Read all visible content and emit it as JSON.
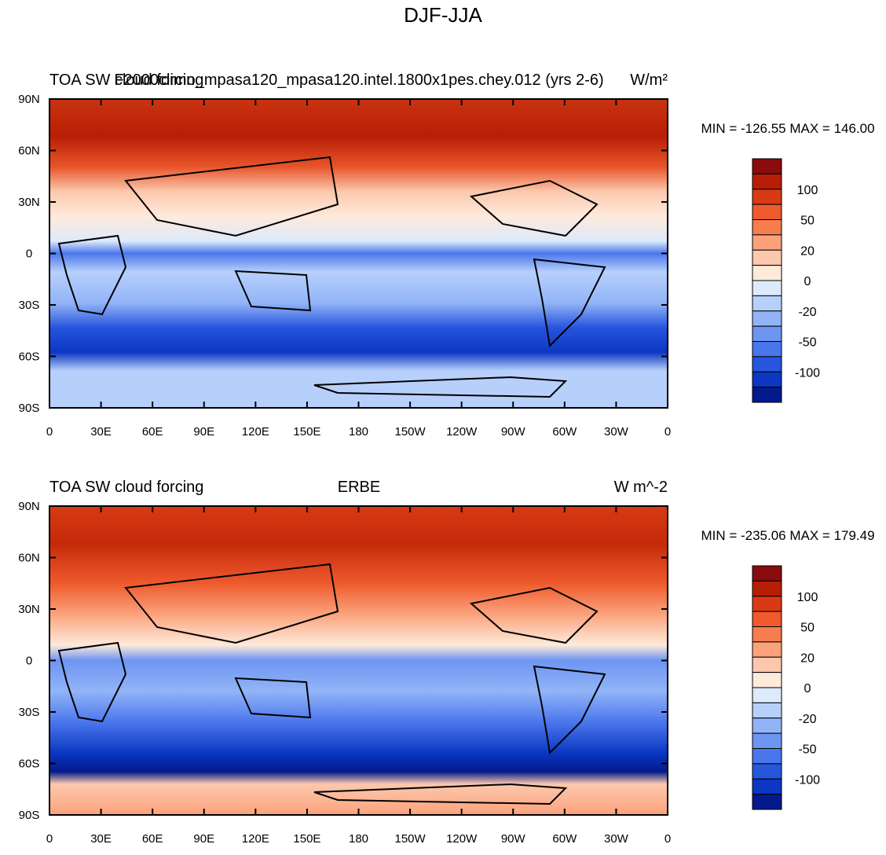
{
  "title": "DJF-JJA",
  "panels": [
    {
      "left_title": "TOA SW cloud forcing",
      "center_title": "F2000climo_mpasa120_mpasa120.intel.1800x1pes.chey.012 (yrs 2-6)",
      "units": "W/m²",
      "min_max": "MIN = -126.55 MAX = 146.00"
    },
    {
      "left_title": "TOA SW cloud forcing",
      "center_title": "ERBE",
      "units": "W m^-2",
      "min_max": "MIN = -235.06 MAX = 179.49"
    }
  ],
  "lat_ticks": [
    "90N",
    "60N",
    "30N",
    "0",
    "30S",
    "60S",
    "90S"
  ],
  "lon_ticks": [
    "0",
    "30E",
    "60E",
    "90E",
    "120E",
    "150E",
    "180",
    "150W",
    "120W",
    "90W",
    "60W",
    "30W",
    "0"
  ],
  "colorbar": {
    "labels": [
      "100",
      "50",
      "20",
      "0",
      "-20",
      "-50",
      "-100"
    ],
    "colors": [
      "#8a0c0c",
      "#b81e05",
      "#d93a13",
      "#ee5a2c",
      "#f67d4e",
      "#fba27c",
      "#fcc8ad",
      "#feeadb",
      "#dceafc",
      "#b7d0fb",
      "#92b4f7",
      "#6d95f2",
      "#4a76ec",
      "#2655de",
      "#0b37c2",
      "#031a8c"
    ]
  }
}
